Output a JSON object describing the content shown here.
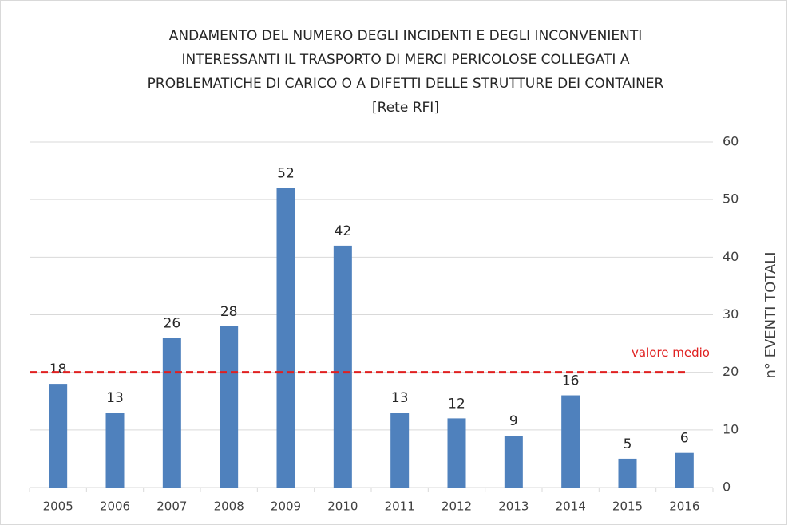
{
  "chart_data": {
    "type": "bar",
    "title": [
      "ANDAMENTO DEL NUMERO DEGLI INCIDENTI E DEGLI INCONVENIENTI",
      "INTERESSANTI IL TRASPORTO DI MERCI PERICOLOSE COLLEGATI A",
      "PROBLEMATICHE DI CARICO O A DIFETTI DELLE STRUTTURE DEI CONTAINER",
      "[Rete RFI]"
    ],
    "categories": [
      "2005",
      "2006",
      "2007",
      "2008",
      "2009",
      "2010",
      "2011",
      "2012",
      "2013",
      "2014",
      "2015",
      "2016"
    ],
    "values": [
      18,
      13,
      26,
      28,
      52,
      42,
      13,
      12,
      9,
      16,
      5,
      6
    ],
    "color": "#4f81bd",
    "y_axis_label": "n° EVENTI TOTALI",
    "y_axis_side": "right",
    "ylim": [
      0,
      60
    ],
    "yticks": [
      0,
      10,
      20,
      30,
      40,
      50,
      60
    ],
    "grid": true,
    "reference_line": {
      "value": 20,
      "label": "valore medio",
      "color": "#e02020"
    }
  }
}
